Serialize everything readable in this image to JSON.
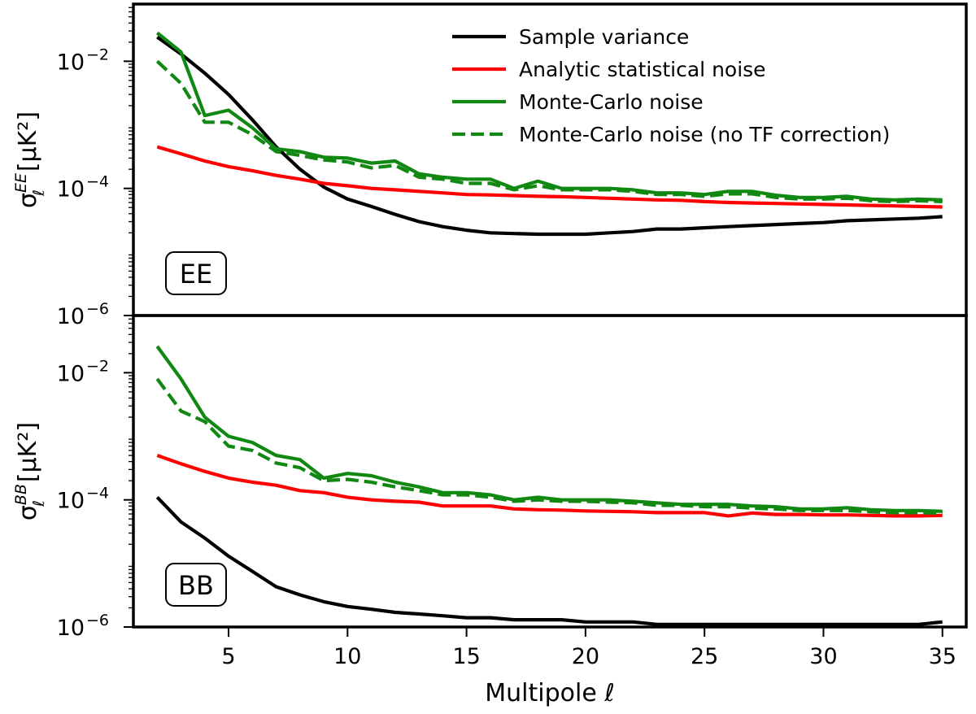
{
  "chart_data": {
    "type": "line",
    "xlabel": "Multipole ℓ",
    "xlim": [
      1,
      36
    ],
    "x_ticks": [
      5,
      10,
      15,
      20,
      25,
      30,
      35
    ],
    "y_scale": "log",
    "legend": {
      "placement": "top-right",
      "entries": [
        {
          "key": "sv",
          "label": "Sample variance",
          "color": "#000000",
          "style": "solid"
        },
        {
          "key": "an",
          "label": "Analytic statistical noise",
          "color": "#ff0000",
          "style": "solid"
        },
        {
          "key": "mc",
          "label": "Monte-Carlo noise",
          "color": "#118811",
          "style": "solid"
        },
        {
          "key": "mcnotf",
          "label": "Monte-Carlo noise (no TF correction)",
          "color": "#118811",
          "style": "dashed"
        }
      ]
    },
    "panels": [
      {
        "id": "EE",
        "tag": "EE",
        "ylabel_base": "σ",
        "ylabel_sup": "EE",
        "ylabel_sub": "ℓ",
        "ylabel_unit": "[μK²]",
        "ylim_log10": [
          -6,
          -1.1
        ],
        "y_ticks_log10": [
          -6,
          -4,
          -2
        ],
        "y_tick_labels": [
          "10",
          "10",
          "10"
        ],
        "y_tick_exps": [
          "−6",
          "−4",
          "−2"
        ],
        "x": [
          2,
          3,
          4,
          5,
          6,
          7,
          8,
          9,
          10,
          11,
          12,
          13,
          14,
          15,
          16,
          17,
          18,
          19,
          20,
          21,
          22,
          23,
          24,
          25,
          26,
          27,
          28,
          29,
          30,
          31,
          32,
          33,
          34,
          35
        ],
        "series": {
          "sv": [
            0.024,
            0.013,
            0.0065,
            0.003,
            0.0012,
            0.00045,
            0.0002,
            0.000105,
            6.8e-05,
            5.2e-05,
            3.9e-05,
            3e-05,
            2.5e-05,
            2.2e-05,
            2e-05,
            1.95e-05,
            1.9e-05,
            1.9e-05,
            1.9e-05,
            2e-05,
            2.1e-05,
            2.3e-05,
            2.3e-05,
            2.4e-05,
            2.5e-05,
            2.6e-05,
            2.7e-05,
            2.8e-05,
            2.9e-05,
            3.1e-05,
            3.2e-05,
            3.3e-05,
            3.4e-05,
            3.6e-05
          ],
          "an": [
            0.00045,
            0.00035,
            0.00027,
            0.00022,
            0.00019,
            0.00016,
            0.00014,
            0.00012,
            0.00011,
            0.0001,
            9.5e-05,
            9e-05,
            8.5e-05,
            8e-05,
            7.9e-05,
            7.7e-05,
            7.5e-05,
            7.4e-05,
            7.2e-05,
            7e-05,
            6.8e-05,
            6.6e-05,
            6.5e-05,
            6.2e-05,
            6e-05,
            5.9e-05,
            5.8e-05,
            5.7e-05,
            5.6e-05,
            5.5e-05,
            5.4e-05,
            5.3e-05,
            5.2e-05,
            5.1e-05
          ],
          "mc": [
            0.028,
            0.014,
            0.0014,
            0.0017,
            0.0009,
            0.00042,
            0.00038,
            0.00031,
            0.0003,
            0.00025,
            0.00027,
            0.00017,
            0.00015,
            0.00014,
            0.00014,
            0.0001,
            0.00013,
            0.0001,
            0.0001,
            0.0001,
            9.5e-05,
            8.5e-05,
            8.5e-05,
            8e-05,
            9e-05,
            9e-05,
            7.8e-05,
            7.2e-05,
            7.2e-05,
            7.5e-05,
            6.8e-05,
            6.6e-05,
            6.8e-05,
            6.6e-05
          ],
          "mcnotf": [
            0.01,
            0.0045,
            0.0011,
            0.0011,
            0.0007,
            0.00038,
            0.00033,
            0.00028,
            0.00026,
            0.00021,
            0.00023,
            0.00015,
            0.00014,
            0.00012,
            0.00012,
            9.5e-05,
            0.00011,
            9.5e-05,
            9.5e-05,
            9.5e-05,
            9e-05,
            8e-05,
            8e-05,
            7.5e-05,
            8.2e-05,
            8.2e-05,
            7.2e-05,
            6.8e-05,
            6.8e-05,
            7e-05,
            6.4e-05,
            6.2e-05,
            6.4e-05,
            6.2e-05
          ]
        }
      },
      {
        "id": "BB",
        "tag": "BB",
        "ylabel_base": "σ",
        "ylabel_sup": "BB",
        "ylabel_sub": "ℓ",
        "ylabel_unit": "[μK²]",
        "ylim_log10": [
          -6,
          -1.1
        ],
        "y_ticks_log10": [
          -6,
          -4,
          -2
        ],
        "y_tick_labels": [
          "10",
          "10",
          "10"
        ],
        "y_tick_exps": [
          "−6",
          "−4",
          "−2"
        ],
        "x": [
          2,
          3,
          4,
          5,
          6,
          7,
          8,
          9,
          10,
          11,
          12,
          13,
          14,
          15,
          16,
          17,
          18,
          19,
          20,
          21,
          22,
          23,
          24,
          25,
          26,
          27,
          28,
          29,
          30,
          31,
          32,
          33,
          34,
          35
        ],
        "series": {
          "sv": [
            0.00011,
            4.5e-05,
            2.5e-05,
            1.3e-05,
            7.5e-06,
            4.3e-06,
            3.2e-06,
            2.5e-06,
            2.1e-06,
            1.9e-06,
            1.7e-06,
            1.6e-06,
            1.5e-06,
            1.4e-06,
            1.4e-06,
            1.3e-06,
            1.3e-06,
            1.3e-06,
            1.2e-06,
            1.2e-06,
            1.2e-06,
            1.1e-06,
            1.1e-06,
            1.1e-06,
            1.1e-06,
            1.1e-06,
            1.1e-06,
            1.1e-06,
            1.1e-06,
            1.1e-06,
            1.1e-06,
            1.1e-06,
            1.1e-06,
            1.2e-06
          ],
          "an": [
            0.0005,
            0.00037,
            0.00028,
            0.00022,
            0.00019,
            0.00017,
            0.00014,
            0.00013,
            0.00011,
            0.0001,
            9.5e-05,
            9.2e-05,
            8e-05,
            8e-05,
            8e-05,
            7.2e-05,
            7e-05,
            6.9e-05,
            6.7e-05,
            6.6e-05,
            6.5e-05,
            6.3e-05,
            6.3e-05,
            6.3e-05,
            5.6e-05,
            6.2e-05,
            5.9e-05,
            5.9e-05,
            5.8e-05,
            5.8e-05,
            5.7e-05,
            5.6e-05,
            5.6e-05,
            5.7e-05
          ],
          "mc": [
            0.026,
            0.008,
            0.002,
            0.001,
            0.0008,
            0.0005,
            0.00043,
            0.00022,
            0.00026,
            0.00024,
            0.00019,
            0.00016,
            0.00013,
            0.00013,
            0.00012,
            0.0001,
            0.00011,
            0.0001,
            0.0001,
            0.0001,
            9.5e-05,
            9e-05,
            8.5e-05,
            8.5e-05,
            8.5e-05,
            8e-05,
            7.8e-05,
            7.2e-05,
            7.2e-05,
            7.5e-05,
            7e-05,
            6.8e-05,
            6.8e-05,
            6.6e-05
          ],
          "mcnotf": [
            0.008,
            0.0025,
            0.0017,
            0.0007,
            0.0006,
            0.00038,
            0.00032,
            0.0002,
            0.00021,
            0.00019,
            0.00016,
            0.00014,
            0.00012,
            0.00012,
            0.00011,
            9.5e-05,
            0.0001,
            9.5e-05,
            9.5e-05,
            9.2e-05,
            9e-05,
            8.2e-05,
            8.2e-05,
            7.8e-05,
            7.8e-05,
            7.4e-05,
            7.2e-05,
            6.8e-05,
            6.8e-05,
            6.8e-05,
            6.5e-05,
            6.3e-05,
            6.3e-05,
            6.2e-05
          ]
        }
      }
    ]
  }
}
